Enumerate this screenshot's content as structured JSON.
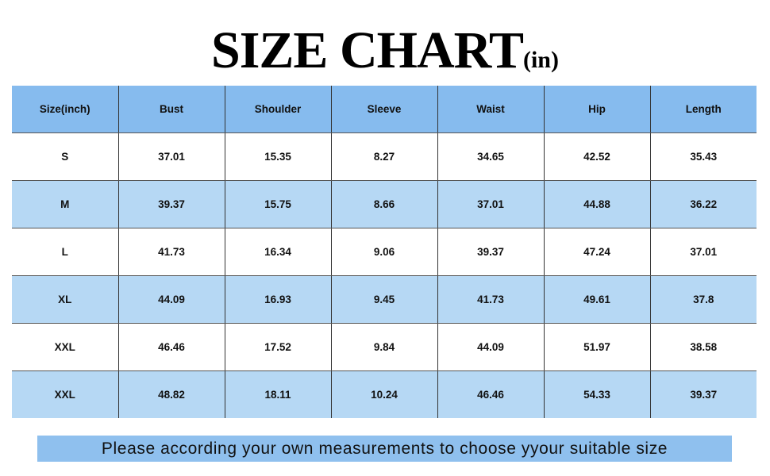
{
  "title": {
    "main": "SIZE CHART",
    "unit": "(in)"
  },
  "colors": {
    "header_bg": "#86bbee",
    "alt_row_bg": "#b6d8f4",
    "note_bg": "#8fc0ee"
  },
  "table": {
    "headers": [
      "Size(inch)",
      "Bust",
      "Shoulder",
      "Sleeve",
      "Waist",
      "Hip",
      "Length"
    ],
    "rows": [
      [
        "S",
        "37.01",
        "15.35",
        "8.27",
        "34.65",
        "42.52",
        "35.43"
      ],
      [
        "M",
        "39.37",
        "15.75",
        "8.66",
        "37.01",
        "44.88",
        "36.22"
      ],
      [
        "L",
        "41.73",
        "16.34",
        "9.06",
        "39.37",
        "47.24",
        "37.01"
      ],
      [
        "XL",
        "44.09",
        "16.93",
        "9.45",
        "41.73",
        "49.61",
        "37.8"
      ],
      [
        "XXL",
        "46.46",
        "17.52",
        "9.84",
        "44.09",
        "51.97",
        "38.58"
      ],
      [
        "XXL",
        "48.82",
        "18.11",
        "10.24",
        "46.46",
        "54.33",
        "39.37"
      ]
    ]
  },
  "note": "Please according your own measurements to choose yyour suitable size"
}
